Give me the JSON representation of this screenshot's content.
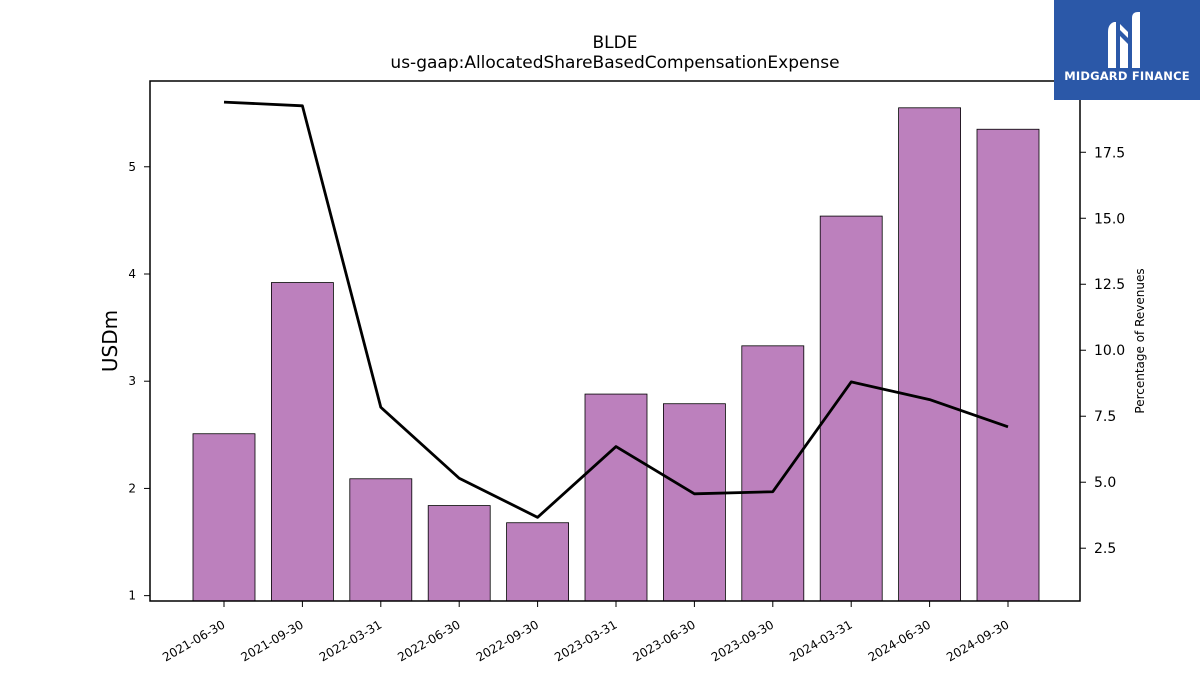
{
  "logo": {
    "text": "MIDGARD FINANCE",
    "background": "#2b58a8"
  },
  "chart_data": {
    "type": "bar",
    "title": "BLDE",
    "subtitle": "us-gaap:AllocatedShareBasedCompensationExpense",
    "categories": [
      "2021-06-30",
      "2021-09-30",
      "2022-03-31",
      "2022-06-30",
      "2022-09-30",
      "2023-03-31",
      "2023-06-30",
      "2023-09-30",
      "2024-03-31",
      "2024-06-30",
      "2024-09-30"
    ],
    "series": [
      {
        "type": "bar",
        "axis": "left",
        "color": "#bc80bd",
        "values": [
          2.51,
          3.92,
          2.09,
          1.84,
          1.68,
          2.88,
          2.79,
          3.33,
          4.54,
          5.55,
          5.35
        ]
      },
      {
        "type": "line",
        "axis": "right",
        "color": "#000000",
        "values": [
          19.4,
          19.26,
          7.84,
          5.15,
          3.67,
          6.35,
          4.56,
          4.64,
          8.8,
          8.13,
          7.1
        ]
      }
    ],
    "ylabel": "USDm",
    "ylabel_right": "Percentage of Revenues",
    "ylim": [
      0.95,
      5.8
    ],
    "ylim_right": [
      0.5,
      20.2
    ],
    "yticks": [
      1,
      2,
      3,
      4,
      5
    ],
    "yticks_right": [
      2.5,
      5.0,
      7.5,
      10.0,
      12.5,
      15.0,
      17.5
    ],
    "grid": false,
    "legend": "none"
  }
}
